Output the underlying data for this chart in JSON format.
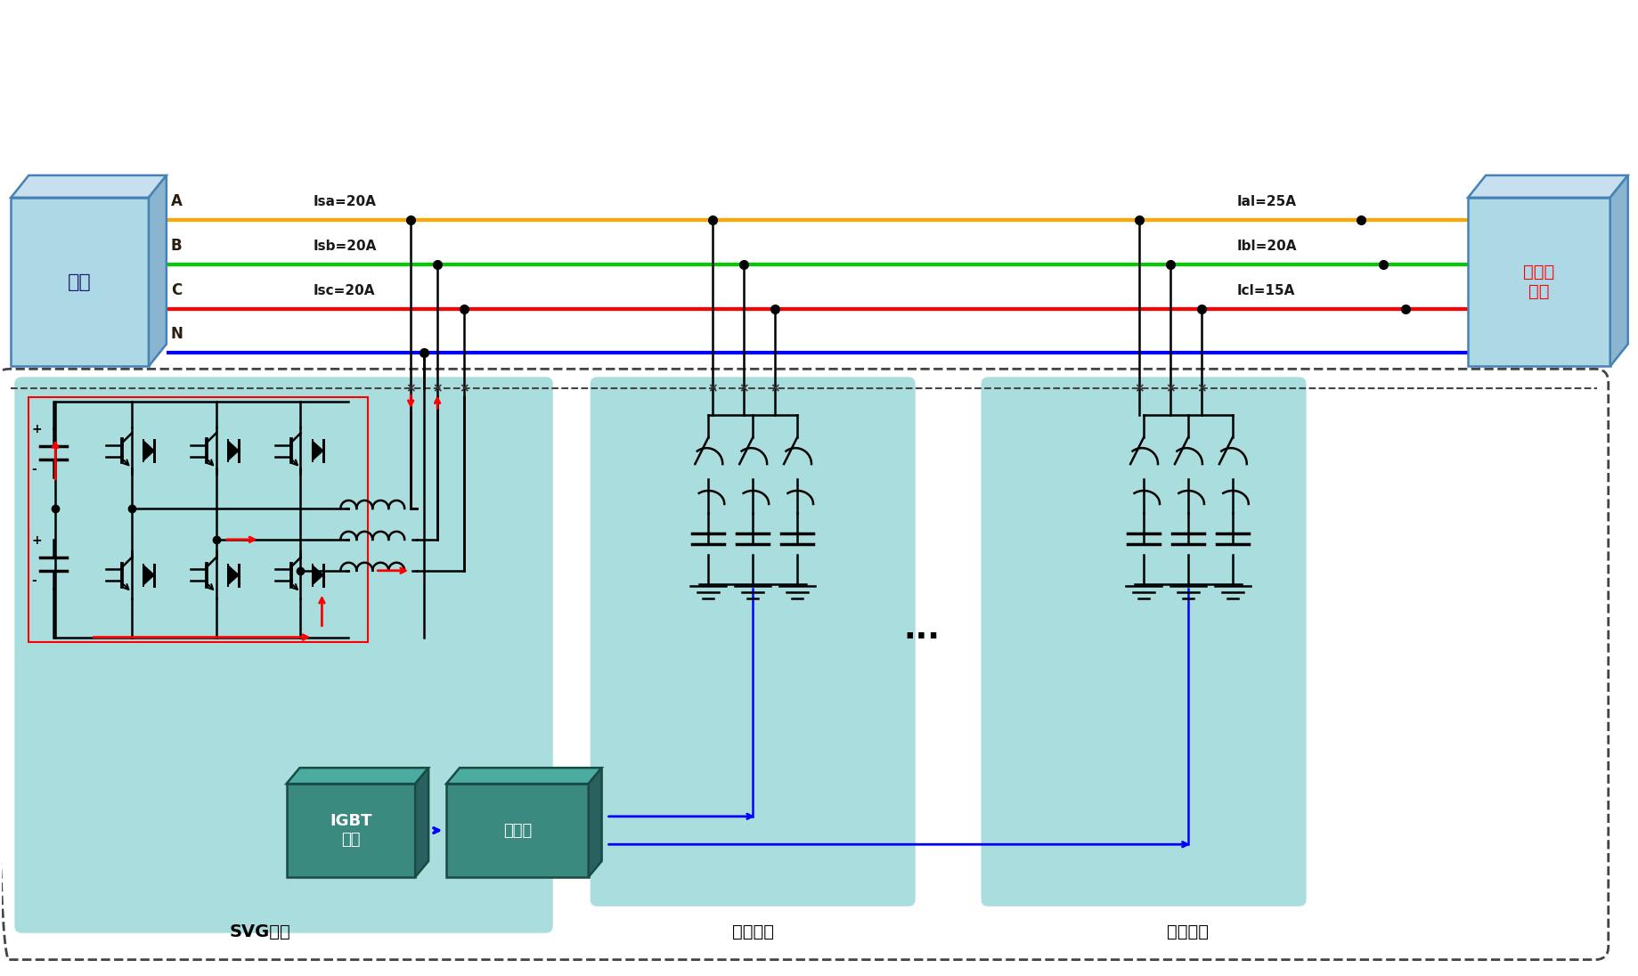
{
  "bg_color": "#ffffff",
  "line_A_color": "#FFA500",
  "line_B_color": "#00CC00",
  "line_C_color": "#FF0000",
  "line_N_color": "#0000FF",
  "box_fill": "#ADD8E6",
  "box_fill_dark": "#8ab4d0",
  "box_fill_top": "#c8dff0",
  "box_edge": "#4682B4",
  "teal_fill": "#aadede",
  "teal_dark": "#3a8a8a",
  "Isa": "Isa=20A",
  "Isb": "Isb=20A",
  "Isc": "Isc=20A",
  "Ial": "Ial=25A",
  "Ibl": "Ibl=20A",
  "Icl": "Icl=15A",
  "grid_text": "电网",
  "load_text": "不平衡\n负载",
  "svg_text": "SVG支路",
  "cap1_text": "电容支路",
  "cap2_text": "电容支路",
  "igbt_text": "IGBT\n驱动",
  "ctrl_text": "控制器",
  "line_lw": 3.0,
  "lw": 1.8
}
